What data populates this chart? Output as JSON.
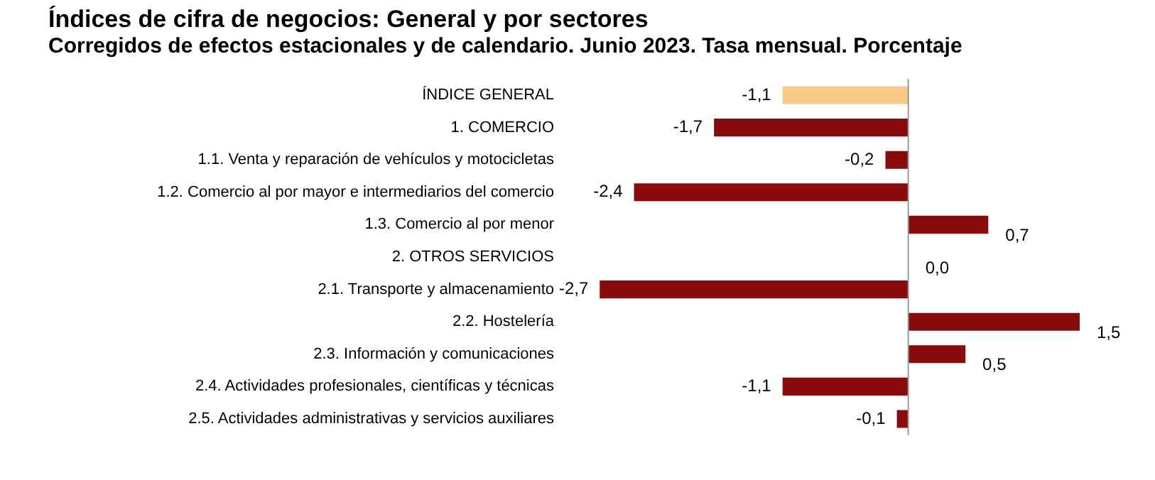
{
  "chart_data": {
    "type": "bar",
    "orientation": "horizontal",
    "title": "Índices de cifra de negocios: General y por sectores",
    "subtitle": "Corregidos de efectos estacionales y de calendario. Junio 2023. Tasa mensual. Porcentaje",
    "categories": [
      "ÍNDICE GENERAL",
      "1. COMERCIO",
      "1.1. Venta y reparación de vehículos y motocicletas",
      "1.2. Comercio al por mayor e intermediarios del comercio",
      "1.3. Comercio al por menor",
      "2. OTROS SERVICIOS",
      "2.1. Transporte y almacenamiento",
      "2.2. Hostelería",
      "2.3. Información y comunicaciones",
      "2.4. Actividades profesionales, científicas y técnicas",
      "2.5. Actividades administrativas y servicios auxiliares"
    ],
    "values": [
      -1.1,
      -1.7,
      -0.2,
      -2.4,
      0.7,
      0.0,
      -2.7,
      1.5,
      0.5,
      -1.1,
      -0.1
    ],
    "value_labels": [
      "-1,1",
      "-1,7",
      "-0,2",
      "-2,4",
      "0,7",
      "0,0",
      "-2,7",
      "1,5",
      "0,5",
      "-1,1",
      "-0,1"
    ],
    "colors": [
      "#f8c987",
      "#8b0a0a",
      "#8b0a0a",
      "#8b0a0a",
      "#8b0a0a",
      "#8b0a0a",
      "#8b0a0a",
      "#8b0a0a",
      "#8b0a0a",
      "#8b0a0a",
      "#8b0a0a"
    ],
    "grid": false,
    "legend": false
  }
}
